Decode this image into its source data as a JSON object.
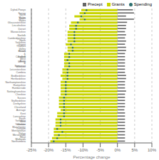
{
  "chart_data": {
    "type": "bar",
    "orientation": "horizontal",
    "xlabel": "Percentage change",
    "categories": [
      "Dyfed-Powys",
      "Surrey",
      "North Wales",
      "South Wales",
      "Gloucestershire",
      "Lincolnshire",
      "Dorset",
      "Warwickshire",
      "Norfolk",
      "Cambridgeshire",
      "North Yorkshire",
      "Gwent",
      "Thames Valley",
      "Essex",
      "Devon & Cornwall",
      "Suffolk",
      "West Mercia",
      "Avon & Somerset",
      "Wiltshire",
      "Leicestershire",
      "Cumbria",
      "Bedfordshire",
      "Hertfordshire",
      "Northamptonshire",
      "Hampshire",
      "Humberside",
      "Nottinghamshire",
      "Cheshire",
      "Sussex",
      "Staffordshire",
      "Derbyshire",
      "Cleveland",
      "Average",
      "Kent",
      "Lancashire",
      "South Yorkshire",
      "West Yorkshire",
      "Greater Manchester",
      "Durham",
      "Metropolitan Police",
      "Merseyside",
      "West Midlands",
      "Northumbria"
    ],
    "series": [
      {
        "name": "Precept",
        "type": "bar",
        "color": "#666666",
        "values": [
          4.5,
          4.8,
          2.5,
          4.8,
          2.8,
          2.5,
          2.5,
          2.2,
          2.5,
          2.2,
          2.5,
          2.2,
          2.5,
          2.5,
          2.2,
          2.2,
          2.2,
          2.2,
          2.2,
          2.2,
          2.2,
          2.5,
          2.5,
          2.2,
          2.2,
          2.2,
          2.5,
          2.2,
          2.2,
          2.2,
          2.2,
          2.2,
          2.0,
          2.2,
          2.2,
          2.2,
          2.2,
          2.2,
          2.2,
          2.2,
          2.2,
          2.2,
          2.2
        ]
      },
      {
        "name": "Grants",
        "type": "bar",
        "color": "#c8d400",
        "values": [
          -10.5,
          -11.0,
          -12.5,
          -11.0,
          -13.5,
          -14.0,
          -14.0,
          -14.5,
          -14.5,
          -14.5,
          -14.5,
          -15.0,
          -14.5,
          -14.5,
          -15.5,
          -15.5,
          -15.5,
          -15.5,
          -15.5,
          -16.0,
          -16.0,
          -16.5,
          -16.0,
          -16.5,
          -16.5,
          -16.5,
          -16.5,
          -16.5,
          -17.0,
          -17.0,
          -17.0,
          -17.0,
          -16.5,
          -17.5,
          -17.5,
          -18.0,
          -18.0,
          -18.0,
          -18.5,
          -18.5,
          -18.5,
          -19.0,
          -19.5
        ]
      },
      {
        "name": "Spending",
        "type": "scatter",
        "marker": "o",
        "color": "#2d6e6e",
        "values": [
          -9.0,
          -9.5,
          -10.5,
          -9.5,
          -11.5,
          -12.0,
          -12.0,
          -12.5,
          -12.5,
          -12.5,
          -12.5,
          -13.5,
          -13.0,
          -13.0,
          -14.0,
          -14.0,
          -14.5,
          -14.0,
          -14.0,
          -14.5,
          -14.5,
          -14.5,
          -14.5,
          -15.0,
          -15.0,
          -15.0,
          -15.0,
          -15.0,
          -15.5,
          -15.5,
          -15.5,
          -15.5,
          -15.5,
          -15.5,
          -15.5,
          -16.5,
          -16.5,
          -16.5,
          -17.5,
          -16.0,
          -17.0,
          -17.5,
          -18.5
        ]
      }
    ],
    "xlim": [
      -25,
      10
    ],
    "xticks": [
      {
        "value": -25,
        "label": "-25%"
      },
      {
        "value": -20,
        "label": "-20%"
      },
      {
        "value": -15,
        "label": "-15%"
      },
      {
        "value": -10,
        "label": "-10%"
      },
      {
        "value": -5,
        "label": "-5%"
      },
      {
        "value": 0,
        "label": "0%"
      },
      {
        "value": 5,
        "label": "5%"
      },
      {
        "value": 10,
        "label": "10%"
      }
    ],
    "grid": true,
    "legend": "upper right"
  }
}
